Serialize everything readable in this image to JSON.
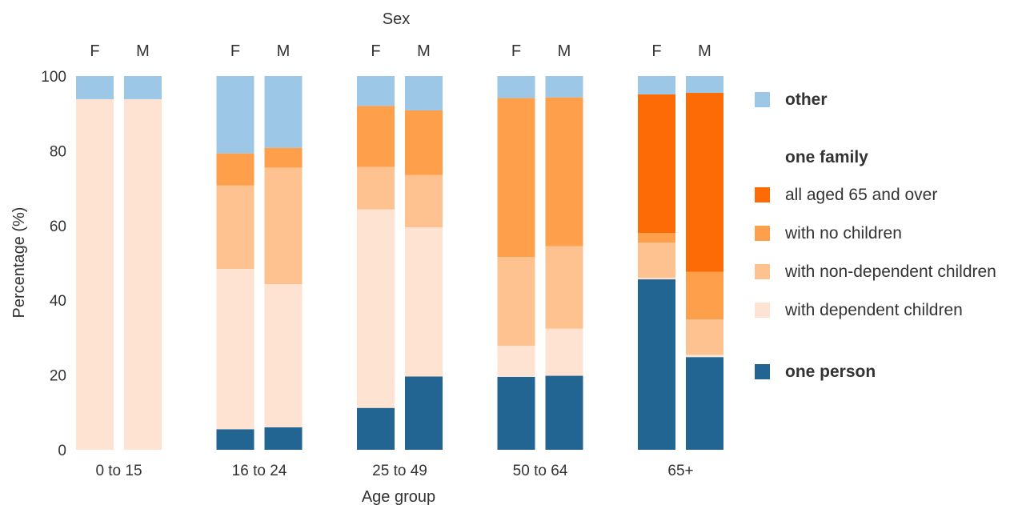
{
  "chart_data": {
    "type": "bar",
    "stacked": true,
    "facet_title": "Sex",
    "xlabel": "Age group",
    "ylabel": "Percentage (%)",
    "ylim": [
      0,
      100
    ],
    "y_ticks": [
      0,
      20,
      40,
      60,
      80,
      100
    ],
    "grid": false,
    "legend_position": "right",
    "groups": [
      "0 to 15",
      "16 to 24",
      "25 to 49",
      "50 to 64",
      "65+"
    ],
    "sexes": [
      "F",
      "M"
    ],
    "series": [
      {
        "key": "one_person",
        "color": "#236592",
        "values": [
          [
            0,
            0
          ],
          [
            5.5,
            6
          ],
          [
            11.2,
            19.6
          ],
          [
            19.5,
            19.8
          ],
          [
            45.6,
            24.8
          ]
        ]
      },
      {
        "key": "dependent",
        "color": "#FEE3D3",
        "values": [
          [
            93.8,
            93.8
          ],
          [
            42.9,
            38.3
          ],
          [
            53.1,
            39.9
          ],
          [
            8.3,
            12.6
          ],
          [
            0.4,
            0.6
          ]
        ]
      },
      {
        "key": "non_dependent",
        "color": "#FDC28F",
        "values": [
          [
            0,
            0
          ],
          [
            22.3,
            31.2
          ],
          [
            11.4,
            14.0
          ],
          [
            23.8,
            22.1
          ],
          [
            9.4,
            9.5
          ]
        ]
      },
      {
        "key": "no_children",
        "color": "#FD9F4B",
        "values": [
          [
            0,
            0
          ],
          [
            8.6,
            5.3
          ],
          [
            16.3,
            17.3
          ],
          [
            42.5,
            39.8
          ],
          [
            2.6,
            12.7
          ]
        ]
      },
      {
        "key": "aged_65",
        "color": "#FD6B06",
        "values": [
          [
            0,
            0
          ],
          [
            0,
            0
          ],
          [
            0,
            0
          ],
          [
            0,
            0
          ],
          [
            37.1,
            47.9
          ]
        ]
      },
      {
        "key": "other",
        "color": "#9DC7E6",
        "values": [
          [
            6.2,
            6.2
          ],
          [
            20.7,
            19.2
          ],
          [
            8.0,
            9.2
          ],
          [
            5.9,
            5.7
          ],
          [
            4.9,
            4.5
          ]
        ]
      }
    ],
    "legend": [
      {
        "kind": "item",
        "series": "other",
        "label": "other",
        "bold": true
      },
      {
        "kind": "heading",
        "label": "one family"
      },
      {
        "kind": "item",
        "series": "aged_65",
        "label": "all aged 65 and over",
        "bold": false
      },
      {
        "kind": "item",
        "series": "no_children",
        "label": "with no children",
        "bold": false
      },
      {
        "kind": "item",
        "series": "non_dependent",
        "label": "with non-dependent children",
        "bold": false
      },
      {
        "kind": "item",
        "series": "dependent",
        "label": "with dependent children",
        "bold": false
      },
      {
        "kind": "item",
        "series": "one_person",
        "label": "one person",
        "bold": true
      }
    ]
  }
}
